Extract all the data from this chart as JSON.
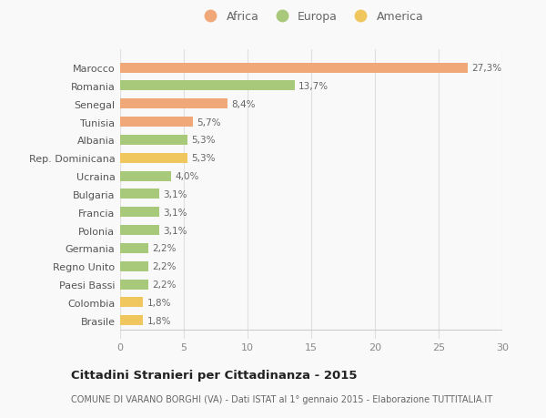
{
  "categories": [
    "Brasile",
    "Colombia",
    "Paesi Bassi",
    "Regno Unito",
    "Germania",
    "Polonia",
    "Francia",
    "Bulgaria",
    "Ucraina",
    "Rep. Dominicana",
    "Albania",
    "Tunisia",
    "Senegal",
    "Romania",
    "Marocco"
  ],
  "values": [
    1.8,
    1.8,
    2.2,
    2.2,
    2.2,
    3.1,
    3.1,
    3.1,
    4.0,
    5.3,
    5.3,
    5.7,
    8.4,
    13.7,
    27.3
  ],
  "colors": [
    "#f0c75e",
    "#f0c75e",
    "#a8c87a",
    "#a8c87a",
    "#a8c87a",
    "#a8c87a",
    "#a8c87a",
    "#a8c87a",
    "#a8c87a",
    "#f0c75e",
    "#a8c87a",
    "#f0a878",
    "#f0a878",
    "#a8c87a",
    "#f0a878"
  ],
  "labels": [
    "1,8%",
    "1,8%",
    "2,2%",
    "2,2%",
    "2,2%",
    "3,1%",
    "3,1%",
    "3,1%",
    "4,0%",
    "5,3%",
    "5,3%",
    "5,7%",
    "8,4%",
    "13,7%",
    "27,3%"
  ],
  "legend": [
    {
      "label": "Africa",
      "color": "#f0a878"
    },
    {
      "label": "Europa",
      "color": "#a8c87a"
    },
    {
      "label": "America",
      "color": "#f0c75e"
    }
  ],
  "title": "Cittadini Stranieri per Cittadinanza - 2015",
  "subtitle": "COMUNE DI VARANO BORGHI (VA) - Dati ISTAT al 1° gennaio 2015 - Elaborazione TUTTITALIA.IT",
  "xlim": [
    0,
    30
  ],
  "xticks": [
    0,
    5,
    10,
    15,
    20,
    25,
    30
  ],
  "background_color": "#f9f9f9",
  "grid_color": "#e0e0e0",
  "bar_height": 0.55
}
